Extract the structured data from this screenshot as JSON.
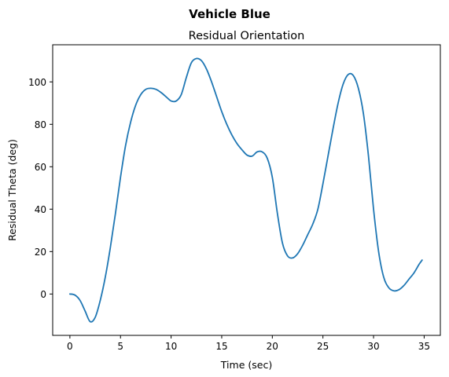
{
  "suptitle": "Vehicle Blue",
  "chart_data": {
    "type": "line",
    "title": "Residual Orientation",
    "xlabel": "Time (sec)",
    "ylabel": "Residual Theta (deg)",
    "xlim": [
      -1.7,
      36.6
    ],
    "ylim": [
      -19.5,
      117.5
    ],
    "xticks": [
      0,
      5,
      10,
      15,
      20,
      25,
      30,
      35
    ],
    "yticks": [
      0,
      20,
      40,
      60,
      80,
      100
    ],
    "xtick_labels": [
      "0",
      "5",
      "10",
      "15",
      "20",
      "25",
      "30",
      "35"
    ],
    "ytick_labels": [
      "0",
      "20",
      "40",
      "60",
      "80",
      "100"
    ],
    "grid": false,
    "series": [
      {
        "name": "Residual Theta",
        "color": "#1f77b4",
        "x": [
          0,
          0.5,
          1,
          1.5,
          2,
          2.5,
          3,
          3.5,
          4,
          4.5,
          5,
          5.5,
          6,
          6.5,
          7,
          7.5,
          8,
          8.5,
          9,
          9.5,
          10,
          10.5,
          11,
          11.5,
          12,
          12.5,
          13,
          13.5,
          14,
          14.5,
          15,
          15.5,
          16,
          16.5,
          17,
          17.5,
          18,
          18.5,
          19,
          19.5,
          20,
          20.5,
          21,
          21.5,
          22,
          22.5,
          23,
          23.5,
          24,
          24.5,
          25,
          25.5,
          26,
          26.5,
          27,
          27.5,
          28,
          28.5,
          29,
          29.5,
          30,
          30.5,
          31,
          31.5,
          32,
          32.5,
          33,
          33.5,
          34,
          34.5,
          34.8
        ],
        "y": [
          0,
          -0.5,
          -3,
          -8,
          -13,
          -11,
          -3,
          8,
          22,
          38,
          55,
          70,
          81,
          89,
          94,
          96.5,
          97,
          96.5,
          95,
          93,
          91,
          91,
          94,
          102,
          109,
          111,
          110,
          106,
          100,
          93,
          86,
          80,
          75,
          71,
          68,
          65.5,
          65,
          67,
          67,
          64,
          55,
          38,
          24,
          18,
          17,
          19,
          23,
          28,
          33,
          40,
          52,
          65,
          78,
          90,
          99,
          103.5,
          103,
          97,
          85,
          65,
          40,
          20,
          8,
          3,
          1.5,
          2,
          4,
          7,
          10,
          14,
          16
        ]
      }
    ]
  }
}
